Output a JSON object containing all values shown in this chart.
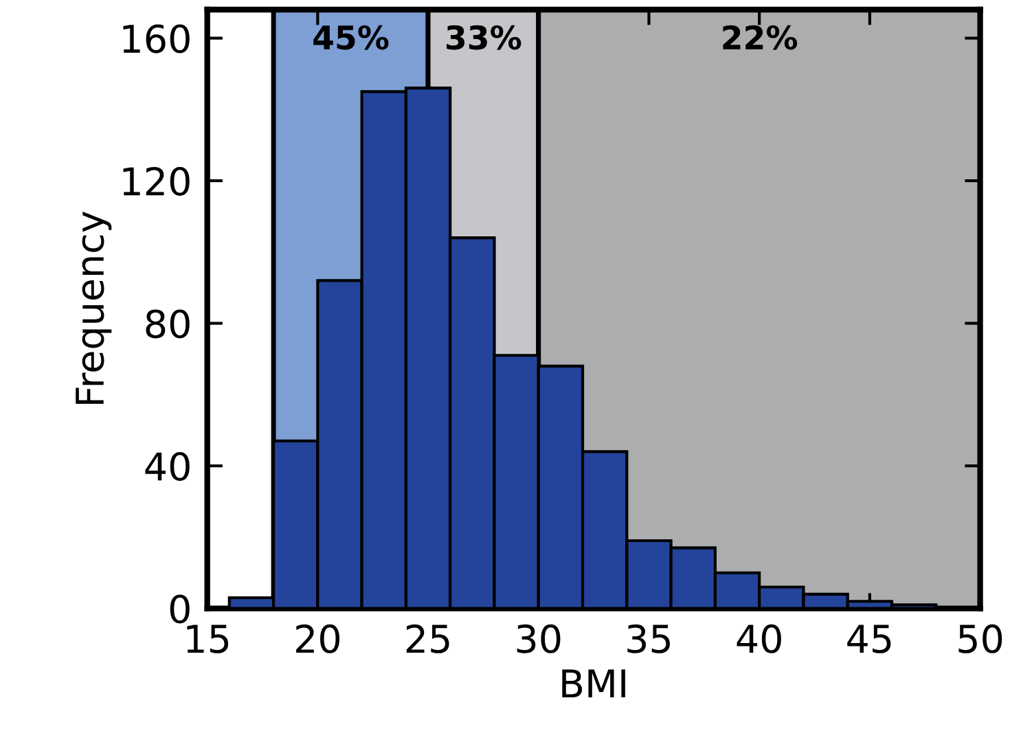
{
  "chart_data": {
    "type": "histogram",
    "xlabel": "BMI",
    "ylabel": "Frequency",
    "bins": [
      16,
      18,
      20,
      22,
      24,
      26,
      28,
      30,
      32,
      34,
      36,
      38,
      40,
      42,
      44,
      46,
      48
    ],
    "values": [
      3,
      47,
      92,
      145,
      146,
      104,
      71,
      68,
      44,
      19,
      17,
      10,
      6,
      4,
      2,
      1
    ],
    "color": "#23449a",
    "bands": [
      {
        "axis": "x",
        "from": 18,
        "to": 25,
        "label": "45%",
        "color": "#7d9fd4"
      },
      {
        "axis": "x",
        "from": 25,
        "to": 30,
        "label": "33%",
        "color": "#c5c6c9"
      },
      {
        "axis": "x",
        "from": 30,
        "to": 50,
        "label": "22%",
        "color": "#acadaf"
      }
    ],
    "xlim": [
      15,
      50
    ],
    "ylim": [
      0,
      168
    ],
    "xticks": [
      15,
      20,
      25,
      30,
      35,
      40,
      45,
      50
    ],
    "yticks": [
      0,
      40,
      80,
      120,
      160
    ],
    "grid": false,
    "legend": false
  }
}
